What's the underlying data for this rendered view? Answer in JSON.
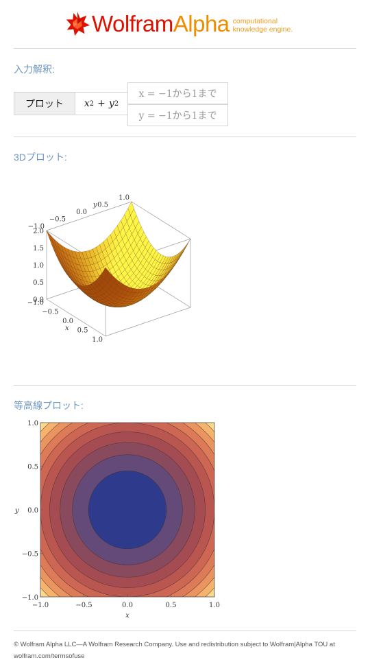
{
  "header": {
    "logo_wolfram": "Wolfram",
    "logo_alpha": "Alpha",
    "tagline_line1": "computational",
    "tagline_line2": "knowledge engine."
  },
  "input_section": {
    "title": "入力解釈:",
    "plot_label": "プロット",
    "expr_x": "x",
    "expr_plus": "+",
    "expr_y": "y",
    "expr_exp": "2",
    "range_x": "x = −1から1まで",
    "range_y": "y = −1から1まで"
  },
  "plot3d_section": {
    "title": "3Dプロット:",
    "ticks_x": [
      "−1.0",
      "−0.5",
      "0.0",
      "0.5",
      "1.0"
    ],
    "ticks_y": [
      "−1.0",
      "−0.5",
      "0.0",
      "0.5",
      "1.0"
    ],
    "ticks_z": [
      "0.0",
      "0.5",
      "1.0",
      "1.5",
      "2.0"
    ],
    "axis_x": "x",
    "axis_y": "y"
  },
  "contour_section": {
    "title": "等高線プロット:",
    "ticks_x": [
      "−1.0",
      "−0.5",
      "0.0",
      "0.5",
      "1.0"
    ],
    "ticks_y": [
      "1.0",
      "0.5",
      "0.0",
      "−0.5",
      "−1.0"
    ],
    "axis_x": "x",
    "axis_y": "y"
  },
  "footer": {
    "line1": "© Wolfram Alpha LLC—A Wolfram Research Company. Use and redistribution subject to Wolfram|Alpha TOU at",
    "line2": "wolfram.com/termsofuse"
  },
  "colors": {
    "section_title": "#6d97bf",
    "logo_red": "#dd1100",
    "logo_orange": "#f08c00",
    "contour_center": "#2e3a8c"
  },
  "chart_data": [
    {
      "type": "surface",
      "function": "x^2 + y^2",
      "xlim": [
        -1,
        1
      ],
      "ylim": [
        -1,
        1
      ],
      "zlim": [
        0,
        2
      ]
    },
    {
      "type": "contour",
      "function": "x^2 + y^2",
      "xlim": [
        -1,
        1
      ],
      "ylim": [
        -1,
        1
      ],
      "levels": [
        0.2,
        0.4,
        0.6,
        0.8,
        1.0,
        1.2,
        1.4,
        1.6,
        1.8
      ]
    }
  ]
}
